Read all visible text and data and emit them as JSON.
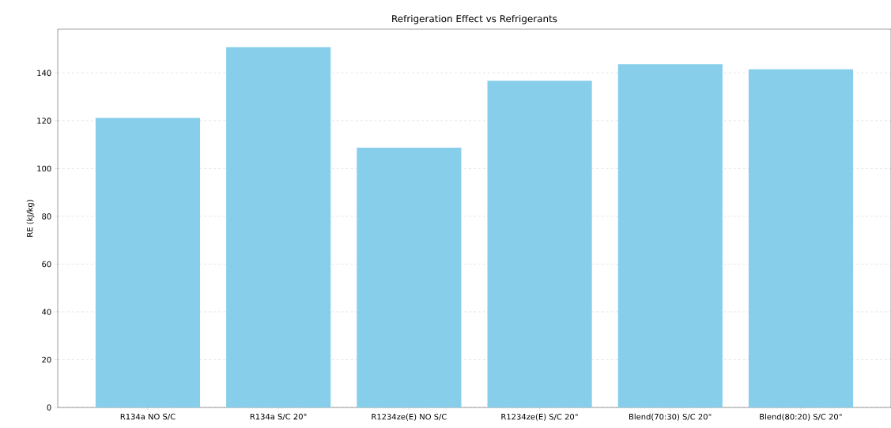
{
  "chart_data": {
    "type": "bar",
    "title": "Refrigeration Effect vs Refrigerants",
    "ylabel": "RE (kJ/kg)",
    "categories": [
      "R134a NO S/C",
      "R134a S/C 20°",
      "R1234ze(E) NO S/C",
      "R1234ze(E) S/C 20°",
      "Blend(70:30) S/C 20°",
      "Blend(80:20) S/C 20°"
    ],
    "values": [
      121.2,
      150.8,
      108.7,
      136.7,
      143.7,
      141.5
    ],
    "color": "#87ceeb",
    "ylim": [
      0,
      158.3
    ],
    "yticks": [
      0,
      20,
      40,
      60,
      80,
      100,
      120,
      140
    ],
    "grid": "y"
  }
}
